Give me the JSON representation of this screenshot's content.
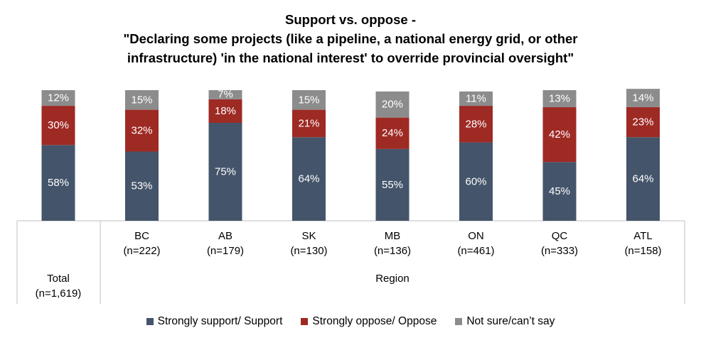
{
  "chart_data": {
    "type": "bar",
    "stacked": true,
    "title_lines": [
      "Support vs. oppose -",
      "\"Declaring some projects (like a pipeline, a national energy grid, or other",
      "infrastructure) 'in the national interest' to override provincial oversight\""
    ],
    "categories": [
      {
        "label": "Total",
        "sublabel": "(n=1,619)"
      },
      {
        "label": "BC",
        "sublabel": "(n=222)"
      },
      {
        "label": "AB",
        "sublabel": "(n=179)"
      },
      {
        "label": "SK",
        "sublabel": "(n=130)"
      },
      {
        "label": "MB",
        "sublabel": "(n=136)"
      },
      {
        "label": "ON",
        "sublabel": "(n=461)"
      },
      {
        "label": "QC",
        "sublabel": "(n=333)"
      },
      {
        "label": "ATL",
        "sublabel": "(n=158)"
      }
    ],
    "group_label": "Region",
    "series": [
      {
        "name": "Strongly support/ Support",
        "color": "#44546a",
        "label_color": "#ffffff",
        "values": [
          58,
          53,
          75,
          64,
          55,
          60,
          45,
          64
        ]
      },
      {
        "name": "Strongly oppose/ Oppose",
        "color": "#9e2a24",
        "label_color": "#ffffff",
        "values": [
          30,
          32,
          18,
          21,
          24,
          28,
          42,
          23
        ]
      },
      {
        "name": "Not sure/can’t say",
        "color": "#8c8c8c",
        "label_color": "#ffffff",
        "values": [
          12,
          15,
          7,
          15,
          20,
          11,
          13,
          14
        ]
      }
    ],
    "value_suffix": "%",
    "ylim": [
      0,
      100
    ],
    "legend_position": "bottom"
  }
}
